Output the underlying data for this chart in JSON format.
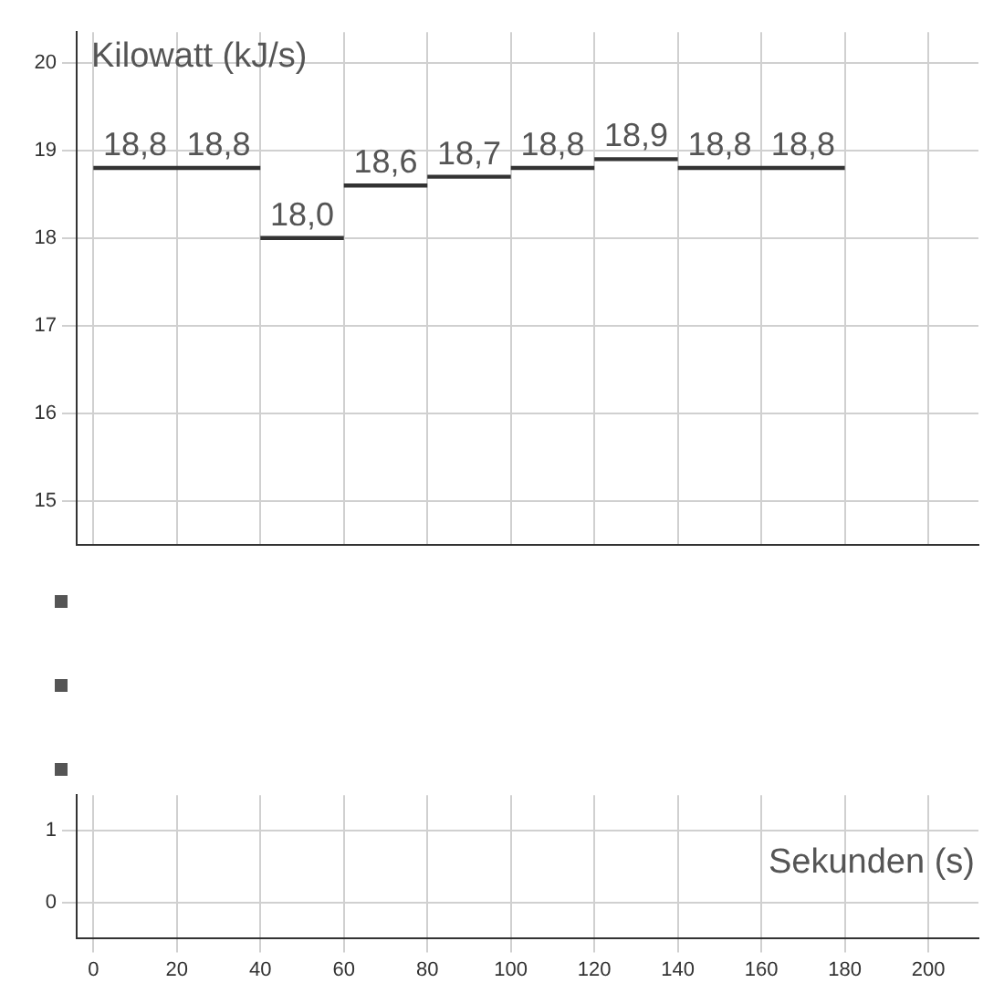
{
  "chart_data": [
    {
      "type": "line",
      "ylabel": "Kilowatt (kJ/s)",
      "xlim": [
        -4,
        212
      ],
      "xticks": [
        0,
        20,
        40,
        60,
        80,
        100,
        120,
        140,
        160,
        180,
        200
      ],
      "ylim": [
        14.5,
        20.35
      ],
      "yticks": [
        15,
        16,
        17,
        18,
        19,
        20
      ],
      "tick_labels": "y",
      "grid": true,
      "legend": false,
      "marker": "none",
      "line_style": "solid",
      "series": [
        {
          "color": "#333333",
          "x": [
            0,
            20,
            40
          ],
          "values": [
            18.8,
            18.8,
            18.8
          ]
        },
        {
          "color": "#333333",
          "x": [
            40,
            60
          ],
          "values": [
            18.0,
            18.0
          ]
        },
        {
          "color": "#333333",
          "x": [
            60,
            80
          ],
          "values": [
            18.6,
            18.6
          ]
        },
        {
          "color": "#333333",
          "x": [
            80,
            100
          ],
          "values": [
            18.7,
            18.7
          ]
        },
        {
          "color": "#333333",
          "x": [
            100,
            120
          ],
          "values": [
            18.8,
            18.8
          ]
        },
        {
          "color": "#333333",
          "x": [
            120,
            140
          ],
          "values": [
            18.9,
            18.9
          ]
        },
        {
          "color": "#333333",
          "x": [
            140,
            160,
            180
          ],
          "values": [
            18.8,
            18.8,
            18.8
          ]
        }
      ],
      "annotations": [
        {
          "text": "18,8",
          "x": 10,
          "y": 18.8
        },
        {
          "text": "18,8",
          "x": 30,
          "y": 18.8
        },
        {
          "text": "18,0",
          "x": 50,
          "y": 18.0
        },
        {
          "text": "18,6",
          "x": 70,
          "y": 18.6
        },
        {
          "text": "18,7",
          "x": 90,
          "y": 18.7
        },
        {
          "text": "18,8",
          "x": 110,
          "y": 18.8
        },
        {
          "text": "18,9",
          "x": 130,
          "y": 18.9
        },
        {
          "text": "18,8",
          "x": 150,
          "y": 18.8
        },
        {
          "text": "18,8",
          "x": 170,
          "y": 18.8
        }
      ]
    },
    {
      "type": "line",
      "xlabel": "Sekunden (s)",
      "xlim": [
        -4,
        212
      ],
      "xticks": [
        0,
        20,
        40,
        60,
        80,
        100,
        120,
        140,
        160,
        180,
        200
      ],
      "ylim": [
        -0.5,
        1.5
      ],
      "yticks": [
        0,
        1
      ],
      "grid": true,
      "legend": false
    }
  ]
}
